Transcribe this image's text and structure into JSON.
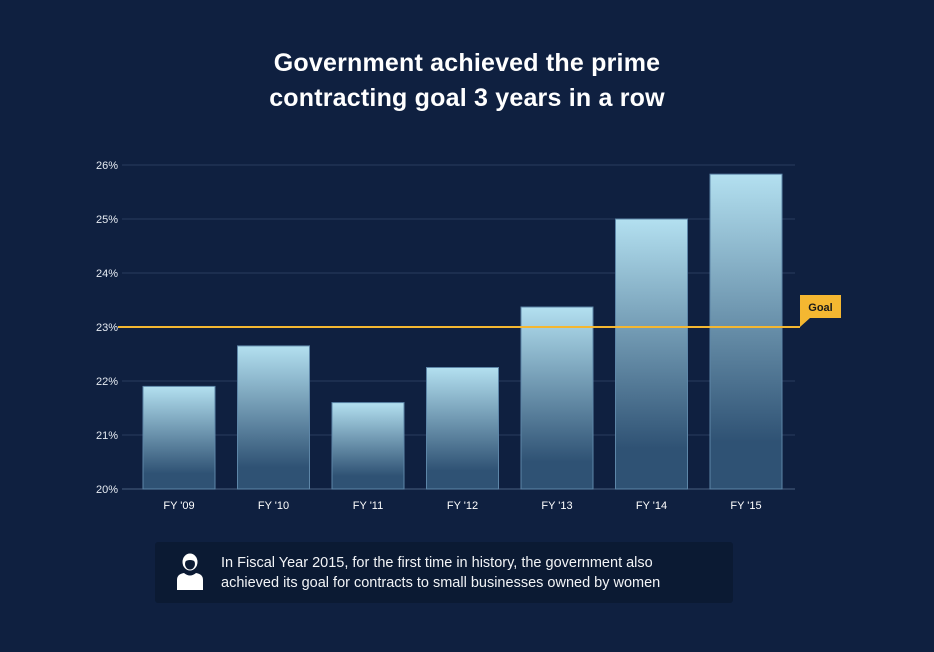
{
  "chart_data": {
    "type": "bar",
    "title_lines": [
      "Government achieved the prime",
      "contracting goal 3 years in a row"
    ],
    "categories": [
      "FY '09",
      "FY '10",
      "FY '11",
      "FY '12",
      "FY '13",
      "FY '14",
      "FY '15"
    ],
    "values": [
      21.9,
      22.65,
      21.6,
      22.25,
      23.37,
      25.0,
      25.83
    ],
    "unit": "%",
    "ylim": [
      20,
      26
    ],
    "yticks": [
      20,
      21,
      22,
      23,
      24,
      25,
      26
    ],
    "ytick_labels": [
      "20%",
      "21%",
      "22%",
      "23%",
      "24%",
      "25%",
      "26%"
    ],
    "grid": true,
    "goal": {
      "value": 23,
      "label": "Goal",
      "color": "#f4b731"
    },
    "bar_gradient": [
      "#b3e0f0",
      "#2f5274"
    ]
  },
  "note": {
    "icon": "woman-user-icon",
    "lines": [
      "In Fiscal Year 2015, for the first time in history, the government also",
      "achieved its goal for contracts to small businesses owned by women"
    ]
  }
}
